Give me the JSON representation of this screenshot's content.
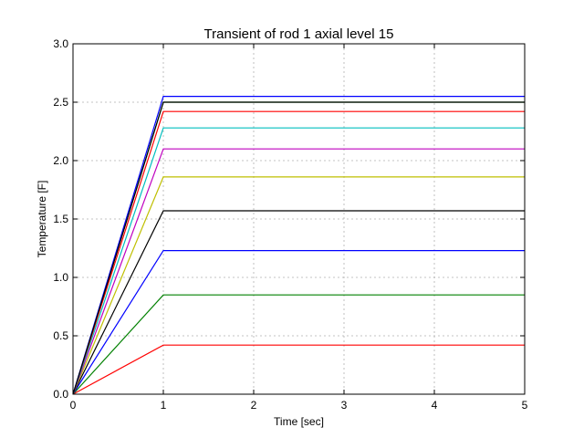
{
  "chart_data": {
    "type": "line",
    "title": "Transient of rod 1 axial level 15",
    "xlabel": "Time [sec]",
    "ylabel": "Temperature [F]",
    "xlim": [
      0,
      5
    ],
    "ylim": [
      0,
      3.0
    ],
    "xticks": [
      "0",
      "1",
      "2",
      "3",
      "4",
      "5"
    ],
    "yticks": [
      "0.0",
      "0.5",
      "1.0",
      "1.5",
      "2.0",
      "2.5",
      "3.0"
    ],
    "grid": true,
    "legend": "none",
    "x": [
      0,
      1,
      5
    ],
    "series": [
      {
        "color": "#ff0000",
        "values": [
          0,
          0.42,
          0.42
        ]
      },
      {
        "color": "#008000",
        "values": [
          0,
          0.85,
          0.85
        ]
      },
      {
        "color": "#0000ff",
        "values": [
          0,
          1.23,
          1.23
        ]
      },
      {
        "color": "#000000",
        "values": [
          0,
          1.57,
          1.57
        ]
      },
      {
        "color": "#bfbf00",
        "values": [
          0,
          1.86,
          1.86
        ]
      },
      {
        "color": "#bf00bf",
        "values": [
          0,
          2.1,
          2.1
        ]
      },
      {
        "color": "#00bfbf",
        "values": [
          0,
          2.28,
          2.28
        ]
      },
      {
        "color": "#ff0000",
        "values": [
          0,
          2.42,
          2.42
        ]
      },
      {
        "color": "#008000",
        "values": [
          0,
          2.5,
          2.5
        ]
      },
      {
        "color": "#0000ff",
        "values": [
          0,
          2.55,
          2.55
        ]
      },
      {
        "color": "#000000",
        "values": [
          0,
          2.5,
          2.5
        ]
      }
    ]
  }
}
